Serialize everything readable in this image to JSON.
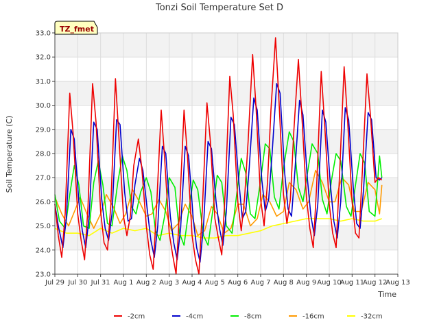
{
  "chart_data": {
    "type": "line",
    "title": "Tonzi Soil Temperature Set D",
    "xlabel": "Time",
    "ylabel": "Soil Temperature (C)",
    "badge": "TZ_fmet",
    "xlim": [
      0,
      15
    ],
    "ylim": [
      23.0,
      33.0
    ],
    "xticks": [
      {
        "v": 0,
        "label": "Jul 29"
      },
      {
        "v": 1,
        "label": "Jul 30"
      },
      {
        "v": 2,
        "label": "Jul 31"
      },
      {
        "v": 3,
        "label": "Aug 1"
      },
      {
        "v": 4,
        "label": "Aug 2"
      },
      {
        "v": 5,
        "label": "Aug 3"
      },
      {
        "v": 6,
        "label": "Aug 4"
      },
      {
        "v": 7,
        "label": "Aug 5"
      },
      {
        "v": 8,
        "label": "Aug 6"
      },
      {
        "v": 9,
        "label": "Aug 7"
      },
      {
        "v": 10,
        "label": "Aug 8"
      },
      {
        "v": 11,
        "label": "Aug 9"
      },
      {
        "v": 12,
        "label": "Aug 10"
      },
      {
        "v": 13,
        "label": "Aug 11"
      },
      {
        "v": 14,
        "label": "Aug 12"
      },
      {
        "v": 15,
        "label": "Aug 13"
      }
    ],
    "yticks": [
      "23.0",
      "24.0",
      "25.0",
      "26.0",
      "27.0",
      "28.0",
      "29.0",
      "30.0",
      "31.0",
      "32.0",
      "33.0"
    ],
    "series": [
      {
        "name": "-2cm",
        "color": "#ee0000",
        "x": [
          0.0,
          0.15,
          0.3,
          0.45,
          0.65,
          0.8,
          1.0,
          1.15,
          1.3,
          1.45,
          1.65,
          1.8,
          2.0,
          2.15,
          2.3,
          2.45,
          2.65,
          2.8,
          3.0,
          3.15,
          3.3,
          3.45,
          3.65,
          3.8,
          4.0,
          4.15,
          4.3,
          4.45,
          4.65,
          4.8,
          5.0,
          5.15,
          5.3,
          5.45,
          5.65,
          5.8,
          6.0,
          6.15,
          6.3,
          6.45,
          6.65,
          6.8,
          7.0,
          7.15,
          7.3,
          7.45,
          7.65,
          7.8,
          8.0,
          8.15,
          8.3,
          8.45,
          8.65,
          8.8,
          9.0,
          9.15,
          9.3,
          9.45,
          9.65,
          9.8,
          10.0,
          10.15,
          10.3,
          10.45,
          10.65,
          10.8,
          11.0,
          11.15,
          11.3,
          11.45,
          11.65,
          11.8,
          12.0,
          12.15,
          12.3,
          12.45,
          12.65,
          12.8,
          13.0,
          13.15,
          13.3,
          13.45,
          13.65,
          13.8,
          14.0,
          14.15,
          14.3
        ],
        "y": [
          25.9,
          24.6,
          23.7,
          25.5,
          30.5,
          28.8,
          25.5,
          24.4,
          23.6,
          25.8,
          30.9,
          29.3,
          25.6,
          24.3,
          24.0,
          25.9,
          31.1,
          28.7,
          25.4,
          24.6,
          25.4,
          27.5,
          28.6,
          27.4,
          25.0,
          23.8,
          23.2,
          25.8,
          29.8,
          27.8,
          24.7,
          23.8,
          23.0,
          25.6,
          29.8,
          27.9,
          24.6,
          23.6,
          23.0,
          25.7,
          30.1,
          28.5,
          25.3,
          24.5,
          23.8,
          26.4,
          31.2,
          29.6,
          26.0,
          24.8,
          26.2,
          28.5,
          32.1,
          29.9,
          26.1,
          25.0,
          26.8,
          29.8,
          32.8,
          30.2,
          26.3,
          25.1,
          26.1,
          28.9,
          31.9,
          29.6,
          26.2,
          24.9,
          24.1,
          26.7,
          31.4,
          29.2,
          25.9,
          24.7,
          24.1,
          27.1,
          31.6,
          29.4,
          26.0,
          24.7,
          24.5,
          27.3,
          31.3,
          29.6,
          26.8,
          27.0,
          26.9
        ]
      },
      {
        "name": "-4cm",
        "color": "#0000cc",
        "x": [
          0.0,
          0.15,
          0.35,
          0.5,
          0.7,
          0.85,
          1.05,
          1.2,
          1.35,
          1.5,
          1.7,
          1.85,
          2.05,
          2.2,
          2.35,
          2.5,
          2.7,
          2.85,
          3.05,
          3.2,
          3.35,
          3.5,
          3.7,
          3.85,
          4.05,
          4.2,
          4.35,
          4.5,
          4.7,
          4.85,
          5.05,
          5.2,
          5.35,
          5.5,
          5.7,
          5.85,
          6.05,
          6.2,
          6.35,
          6.5,
          6.7,
          6.85,
          7.05,
          7.2,
          7.35,
          7.5,
          7.7,
          7.85,
          8.05,
          8.2,
          8.35,
          8.5,
          8.7,
          8.85,
          9.05,
          9.2,
          9.35,
          9.5,
          9.7,
          9.85,
          10.05,
          10.2,
          10.35,
          10.5,
          10.7,
          10.85,
          11.05,
          11.2,
          11.35,
          11.5,
          11.7,
          11.85,
          12.05,
          12.2,
          12.35,
          12.5,
          12.7,
          12.85,
          13.05,
          13.2,
          13.35,
          13.5,
          13.7,
          13.85,
          14.05,
          14.2,
          14.3
        ],
        "y": [
          25.9,
          25.0,
          24.1,
          25.3,
          29.0,
          28.6,
          26.0,
          24.8,
          24.1,
          25.4,
          29.3,
          29.0,
          26.1,
          24.9,
          24.4,
          25.5,
          29.4,
          29.2,
          26.4,
          25.2,
          25.3,
          26.7,
          27.8,
          27.3,
          25.6,
          24.4,
          23.7,
          25.0,
          28.3,
          28.0,
          25.4,
          24.3,
          23.6,
          24.9,
          28.3,
          27.9,
          25.3,
          24.1,
          23.5,
          25.0,
          28.5,
          28.2,
          26.0,
          24.9,
          24.2,
          25.6,
          29.5,
          29.2,
          26.8,
          25.3,
          25.6,
          27.4,
          30.3,
          29.8,
          26.9,
          25.6,
          26.1,
          28.0,
          30.9,
          30.5,
          27.2,
          25.7,
          25.4,
          27.3,
          30.2,
          29.6,
          26.9,
          25.4,
          24.6,
          25.9,
          29.8,
          29.3,
          26.7,
          25.2,
          24.5,
          26.0,
          29.9,
          29.4,
          26.6,
          25.1,
          24.9,
          26.5,
          29.7,
          29.4,
          27.0,
          26.9,
          27.0
        ]
      },
      {
        "name": "-8cm",
        "color": "#00ee00",
        "x": [
          0.0,
          0.2,
          0.45,
          0.65,
          0.85,
          1.05,
          1.25,
          1.5,
          1.7,
          1.9,
          2.1,
          2.3,
          2.5,
          2.75,
          2.95,
          3.15,
          3.35,
          3.55,
          3.75,
          4.0,
          4.2,
          4.4,
          4.6,
          4.8,
          5.0,
          5.25,
          5.45,
          5.65,
          5.85,
          6.05,
          6.25,
          6.5,
          6.7,
          6.9,
          7.1,
          7.3,
          7.5,
          7.75,
          7.95,
          8.15,
          8.35,
          8.55,
          8.75,
          9.0,
          9.2,
          9.4,
          9.6,
          9.8,
          10.0,
          10.25,
          10.45,
          10.65,
          10.85,
          11.05,
          11.25,
          11.5,
          11.7,
          11.9,
          12.1,
          12.3,
          12.5,
          12.75,
          12.95,
          13.15,
          13.35,
          13.55,
          13.75,
          14.0,
          14.2,
          14.3
        ],
        "y": [
          26.3,
          25.2,
          24.9,
          26.3,
          27.5,
          26.7,
          25.0,
          24.9,
          26.8,
          27.7,
          26.7,
          25.1,
          25.0,
          26.8,
          27.9,
          27.3,
          25.8,
          25.5,
          26.4,
          27.0,
          26.4,
          24.8,
          24.4,
          25.4,
          27.0,
          26.6,
          24.7,
          24.2,
          25.6,
          26.9,
          26.5,
          24.6,
          24.2,
          25.6,
          27.1,
          26.8,
          25.0,
          24.7,
          26.3,
          27.8,
          27.2,
          25.5,
          25.3,
          26.9,
          28.4,
          28.2,
          26.2,
          25.7,
          27.4,
          28.9,
          28.5,
          26.6,
          26.0,
          27.2,
          28.4,
          28.0,
          26.1,
          25.5,
          26.9,
          28.0,
          27.7,
          25.8,
          25.4,
          26.7,
          28.0,
          27.6,
          25.6,
          25.4,
          27.9,
          27.0
        ]
      },
      {
        "name": "-16cm",
        "color": "#ff9900",
        "x": [
          0.0,
          0.3,
          0.6,
          0.9,
          1.1,
          1.4,
          1.7,
          2.0,
          2.25,
          2.55,
          2.85,
          3.1,
          3.4,
          3.7,
          4.0,
          4.25,
          4.55,
          4.85,
          5.1,
          5.4,
          5.7,
          6.0,
          6.25,
          6.55,
          6.85,
          7.1,
          7.4,
          7.7,
          8.0,
          8.25,
          8.55,
          8.85,
          9.1,
          9.4,
          9.7,
          10.0,
          10.25,
          10.55,
          10.85,
          11.1,
          11.4,
          11.7,
          12.0,
          12.25,
          12.55,
          12.85,
          13.1,
          13.4,
          13.7,
          14.0,
          14.2,
          14.3
        ],
        "y": [
          26.2,
          25.5,
          25.0,
          25.7,
          26.2,
          25.5,
          24.9,
          25.5,
          26.3,
          25.8,
          25.1,
          25.5,
          26.5,
          26.0,
          25.4,
          25.5,
          26.1,
          25.6,
          24.8,
          25.1,
          25.9,
          25.4,
          24.6,
          24.8,
          25.8,
          25.5,
          24.7,
          24.9,
          25.9,
          25.9,
          25.0,
          25.3,
          26.3,
          26.0,
          25.4,
          25.6,
          26.8,
          26.5,
          25.7,
          26.0,
          27.3,
          26.8,
          26.0,
          26.0,
          27.0,
          26.7,
          25.6,
          25.6,
          26.8,
          26.5,
          25.5,
          26.7
        ]
      },
      {
        "name": "-32cm",
        "color": "#ffff00",
        "x": [
          0.0,
          0.5,
          1.0,
          1.5,
          2.0,
          2.5,
          3.0,
          3.5,
          4.0,
          4.5,
          5.0,
          5.5,
          6.0,
          6.5,
          7.0,
          7.5,
          8.0,
          8.5,
          9.0,
          9.5,
          10.0,
          10.5,
          11.0,
          11.5,
          12.0,
          12.5,
          13.0,
          13.5,
          14.0,
          14.3
        ],
        "y": [
          24.9,
          24.7,
          24.7,
          24.6,
          24.9,
          24.7,
          24.9,
          24.8,
          24.9,
          24.6,
          24.7,
          24.6,
          24.6,
          24.5,
          24.5,
          24.6,
          24.6,
          24.7,
          24.8,
          25.0,
          25.1,
          25.2,
          25.3,
          25.3,
          25.3,
          25.2,
          25.3,
          25.2,
          25.2,
          25.3
        ]
      }
    ]
  }
}
